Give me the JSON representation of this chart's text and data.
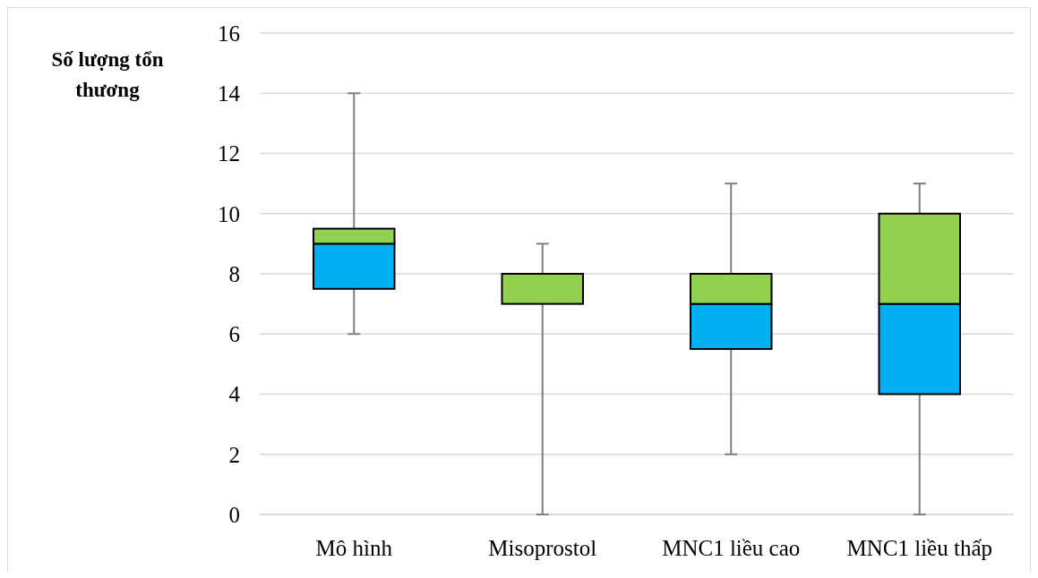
{
  "chart_data": {
    "type": "box",
    "ylabel": "Số lượng tổn thương",
    "categories": [
      "Mô hình",
      "Misoprostol",
      "MNC1 liều cao",
      "MNC1 liều thấp"
    ],
    "boxes": [
      {
        "low": 6,
        "q1": 7.5,
        "median": 9,
        "q3": 9.5,
        "high": 14
      },
      {
        "low": 0,
        "q1": 7,
        "median": 7,
        "q3": 8,
        "high": 9
      },
      {
        "low": 2,
        "q1": 5.5,
        "median": 7,
        "q3": 8,
        "high": 11
      },
      {
        "low": 0,
        "q1": 4,
        "median": 7,
        "q3": 10,
        "high": 11
      }
    ],
    "colors": [
      [
        "#00b0f0",
        "#92d050"
      ],
      [
        "#00b0f0",
        "#92d050"
      ],
      [
        "#00b0f0",
        "#92d050"
      ],
      [
        "#00b0f0",
        "#92d050"
      ]
    ],
    "ylim": [
      0,
      16
    ],
    "yticks": [
      0,
      2,
      4,
      6,
      8,
      10,
      12,
      14,
      16
    ],
    "grid": "y"
  }
}
